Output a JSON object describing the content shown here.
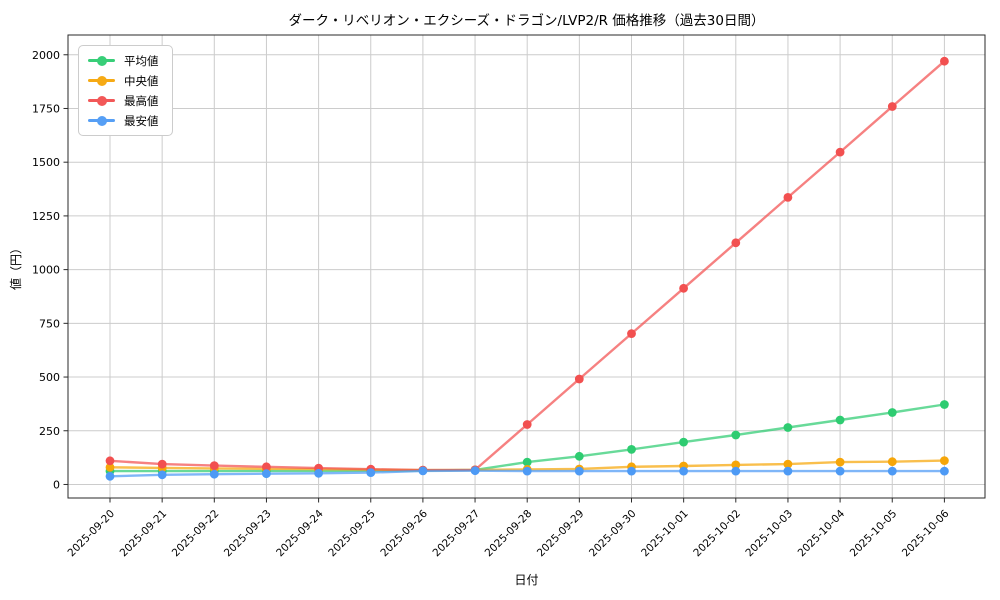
{
  "chart_data": {
    "type": "line",
    "title": "ダーク・リベリオン・エクシーズ・ドラゴン/LVP2/R 価格推移（過去30日間）",
    "xlabel": "日付",
    "ylabel": "値（円）",
    "grid": true,
    "legend_position": "upper-left",
    "x": [
      "2025-09-20",
      "2025-09-21",
      "2025-09-22",
      "2025-09-23",
      "2025-09-24",
      "2025-09-25",
      "2025-09-26",
      "2025-09-27",
      "2025-09-28",
      "2025-09-29",
      "2025-09-30",
      "2025-10-01",
      "2025-10-02",
      "2025-10-03",
      "2025-10-04",
      "2025-10-05",
      "2025-10-06"
    ],
    "yticks": [
      0,
      250,
      500,
      750,
      1000,
      1250,
      1500,
      1750,
      2000
    ],
    "ylim": [
      -63,
      2092
    ],
    "series": [
      {
        "name": "平均値",
        "color": "#2ecc71",
        "values": [
          62,
          62,
          62,
          63,
          63,
          64,
          65,
          68,
          104,
          131,
          163,
          197,
          230,
          265,
          300,
          335,
          372
        ]
      },
      {
        "name": "中央値",
        "color": "#f6a609",
        "values": [
          80,
          77,
          75,
          73,
          71,
          69,
          67,
          68,
          70,
          72,
          82,
          86,
          91,
          95,
          104,
          106,
          111
        ]
      },
      {
        "name": "最高値",
        "color": "#f25050",
        "values": [
          110,
          95,
          88,
          82,
          76,
          71,
          67,
          68,
          279,
          491,
          702,
          913,
          1125,
          1336,
          1547,
          1759,
          1970
        ]
      },
      {
        "name": "最安値",
        "color": "#4d9af5",
        "values": [
          38,
          45,
          48,
          50,
          52,
          55,
          63,
          64,
          62,
          62,
          62,
          62,
          62,
          62,
          62,
          62,
          62
        ]
      }
    ]
  }
}
